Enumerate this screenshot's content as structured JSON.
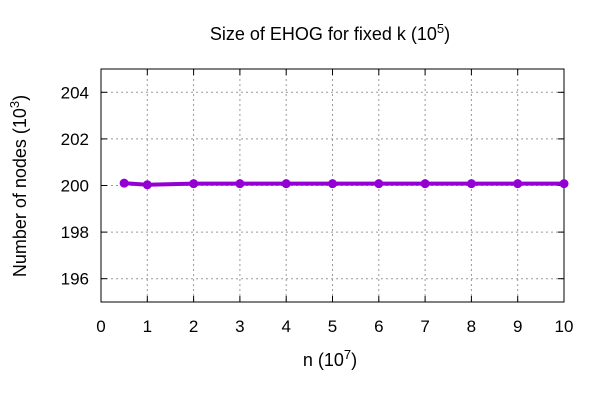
{
  "chart_data": {
    "type": "line",
    "title": "Size of EHOG for fixed k (10",
    "title_sup": "5",
    "title_close": ")",
    "xlabel": "n (10",
    "xlabel_sup": "7",
    "xlabel_close": ")",
    "ylabel": "Number of nodes (10",
    "ylabel_sup": "3",
    "ylabel_close": ")",
    "xlim": [
      0,
      10
    ],
    "ylim": [
      195,
      205
    ],
    "x_ticks": [
      0,
      1,
      2,
      3,
      4,
      5,
      6,
      7,
      8,
      9,
      10
    ],
    "y_ticks": [
      196,
      198,
      200,
      202,
      204
    ],
    "grid": true,
    "series": [
      {
        "color": "#9400d3",
        "x": [
          0.5,
          1,
          2,
          3,
          4,
          5,
          6,
          7,
          8,
          9,
          10
        ],
        "y": [
          200.1,
          200.03,
          200.08,
          200.08,
          200.08,
          200.08,
          200.08,
          200.08,
          200.08,
          200.08,
          200.08
        ]
      }
    ]
  }
}
